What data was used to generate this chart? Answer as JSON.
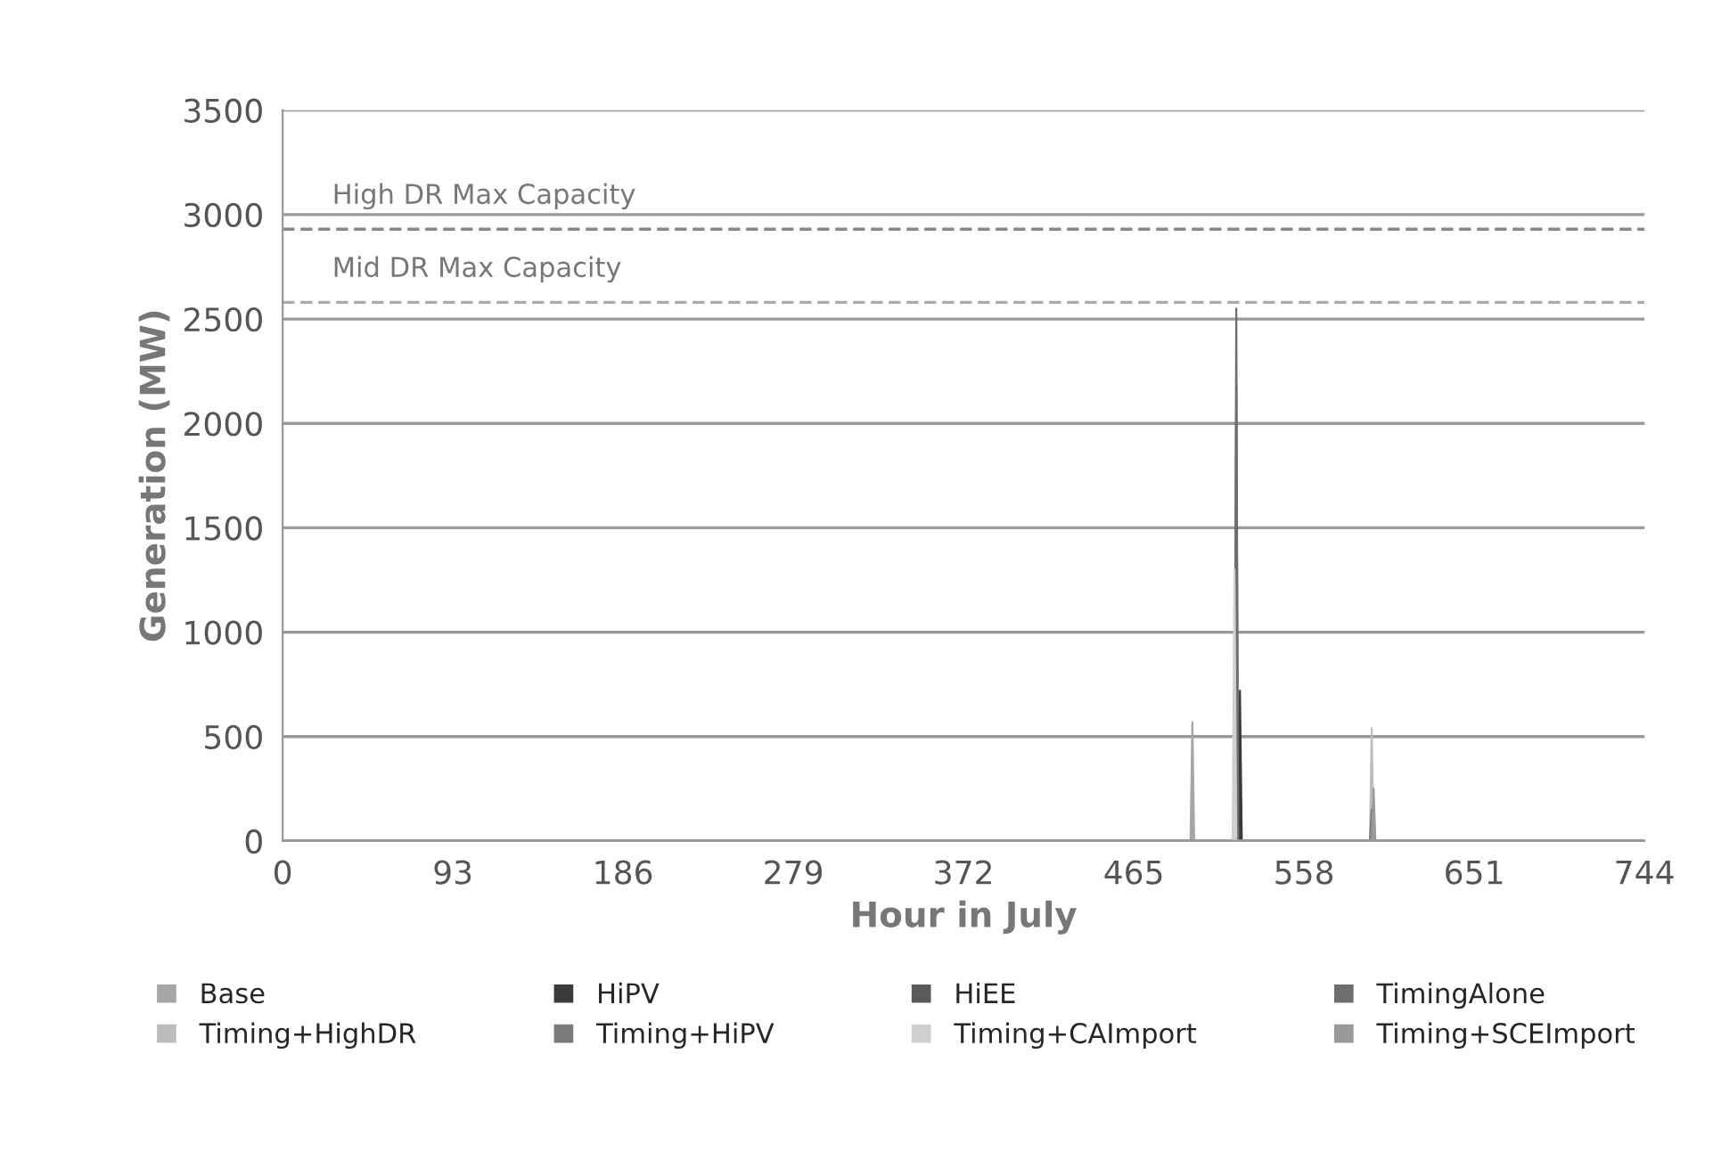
{
  "chart_data": {
    "type": "area",
    "xlabel": "Hour in July",
    "ylabel": "Generation (MW)",
    "xlim": [
      0,
      744
    ],
    "xticks": [
      0,
      93,
      186,
      279,
      372,
      465,
      558,
      651,
      744
    ],
    "ylim": [
      0,
      3500
    ],
    "yticks": [
      0,
      500,
      1000,
      1500,
      2000,
      2500,
      3000,
      3500
    ],
    "grid": "y",
    "legend": "bottom",
    "ref_lines": [
      {
        "axis": "y",
        "value": 2930,
        "label": "High DR Max Capacity",
        "color": "#888888",
        "line_style": "dashed"
      },
      {
        "axis": "y",
        "value": 2580,
        "label": "Mid DR Max Capacity",
        "color": "#aaaaaa",
        "line_style": "dashed"
      }
    ],
    "series": [
      {
        "name": "Base",
        "color": "#a6a6a6",
        "x": [
          0,
          496,
          497,
          498,
          744
        ],
        "values": [
          0,
          0,
          570,
          0,
          0
        ]
      },
      {
        "name": "HiPV",
        "color": "#3a3a3a",
        "x": [
          0,
          522,
          523,
          524,
          744
        ],
        "values": [
          0,
          0,
          720,
          0,
          0
        ]
      },
      {
        "name": "HiEE",
        "color": "#5a5a5a",
        "x": [
          0,
          520,
          521,
          522,
          744
        ],
        "values": [
          0,
          0,
          2180,
          0,
          0
        ]
      },
      {
        "name": "TimingAlone",
        "color": "#6e6e6e",
        "x": [
          0,
          520,
          521,
          522,
          744
        ],
        "values": [
          0,
          0,
          2550,
          0,
          0
        ]
      },
      {
        "name": "Timing+HighDR",
        "color": "#bcbcbc",
        "x": [
          0,
          594,
          595,
          596,
          744
        ],
        "values": [
          0,
          0,
          540,
          0,
          0
        ]
      },
      {
        "name": "Timing+HiPV",
        "color": "#7a7a7a",
        "x": [
          0,
          594,
          595,
          596,
          744
        ],
        "values": [
          0,
          0,
          150,
          0,
          0
        ]
      },
      {
        "name": "Timing+CAImport",
        "color": "#d0d0d0",
        "x": [
          0,
          519,
          520,
          521,
          744
        ],
        "values": [
          0,
          0,
          1300,
          0,
          0
        ]
      },
      {
        "name": "Timing+SCEImport",
        "color": "#999999",
        "x": [
          0,
          595,
          596,
          597,
          744
        ],
        "values": [
          0,
          0,
          250,
          0,
          0
        ]
      }
    ]
  }
}
